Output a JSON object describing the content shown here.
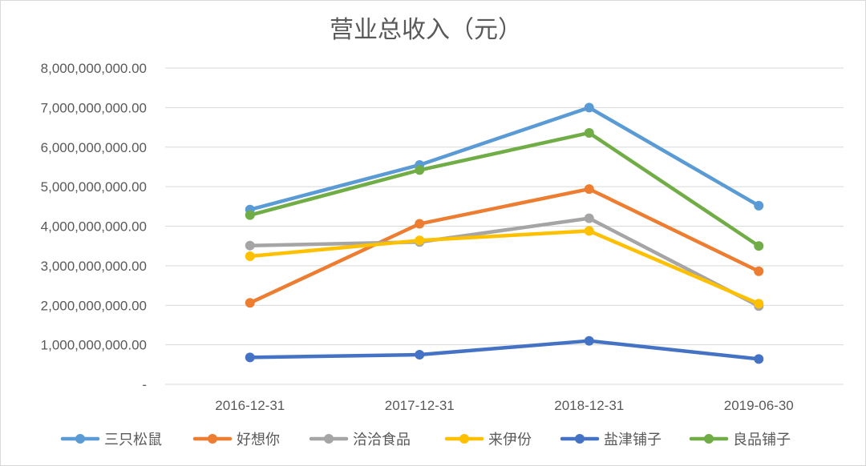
{
  "chart_data": {
    "type": "line",
    "title": "营业总收入（元）",
    "xlabel": "",
    "ylabel": "",
    "categories": [
      "2016-12-31",
      "2017-12-31",
      "2018-12-31",
      "2019-06-30"
    ],
    "y_tick_labels": [
      "-",
      "1,000,000,000.00",
      "2,000,000,000.00",
      "3,000,000,000.00",
      "4,000,000,000.00",
      "5,000,000,000.00",
      "6,000,000,000.00",
      "7,000,000,000.00",
      "8,000,000,000.00"
    ],
    "ylim": [
      0,
      8000000000
    ],
    "grid": true,
    "legend_position": "bottom",
    "series": [
      {
        "name": "三只松鼠",
        "color": "#5b9bd5",
        "values": [
          4420000000,
          5550000000,
          7000000000,
          4520000000
        ]
      },
      {
        "name": "好想你",
        "color": "#ed7d31",
        "values": [
          2060000000,
          4060000000,
          4940000000,
          2860000000
        ]
      },
      {
        "name": "洽洽食品",
        "color": "#a5a5a5",
        "values": [
          3510000000,
          3600000000,
          4200000000,
          1980000000
        ]
      },
      {
        "name": "来伊份",
        "color": "#ffc000",
        "values": [
          3240000000,
          3640000000,
          3880000000,
          2040000000
        ]
      },
      {
        "name": "盐津铺子",
        "color": "#4472c4",
        "values": [
          680000000,
          750000000,
          1100000000,
          640000000
        ]
      },
      {
        "name": "良品铺子",
        "color": "#70ad47",
        "values": [
          4280000000,
          5420000000,
          6360000000,
          3500000000
        ]
      }
    ]
  }
}
